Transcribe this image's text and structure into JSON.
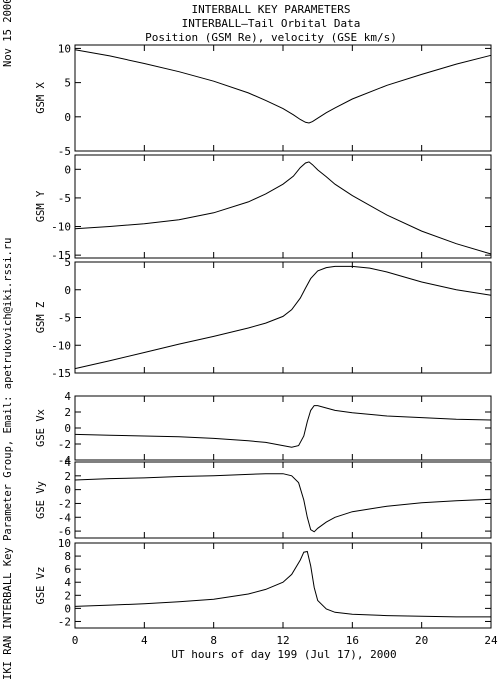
{
  "titles": {
    "line1": "INTERBALL KEY PARAMETERS",
    "line2": "INTERBALL–Tail Orbital Data",
    "line3": "Position (GSM Re), velocity (GSE km/s)"
  },
  "side_text": {
    "date": "Nov 15 2000",
    "credit": "IKI RAN INTERBALL Key Parameter Group, Email: apetrukovich@iki.rssi.ru"
  },
  "colors": {
    "line": "#000000",
    "background": "#ffffff"
  },
  "chart_data": {
    "type": "line",
    "xlabel": "UT hours of day 199 (Jul 17), 2000",
    "xlim": [
      0,
      24
    ],
    "xticks": [
      0,
      4,
      8,
      12,
      16,
      20,
      24
    ],
    "grid": false,
    "panels": [
      {
        "id": "gsm-x",
        "ylabel": "GSM X",
        "ylim": [
          -5,
          10.5
        ],
        "yticks": [
          10,
          5,
          0,
          -5
        ],
        "x": [
          0,
          2,
          4,
          6,
          8,
          10,
          11,
          12,
          12.6,
          13,
          13.3,
          13.5,
          13.7,
          14,
          14.5,
          15,
          16,
          18,
          20,
          22,
          24
        ],
        "y": [
          9.8,
          8.9,
          7.8,
          6.6,
          5.2,
          3.5,
          2.4,
          1.2,
          0.3,
          -0.4,
          -0.8,
          -0.9,
          -0.7,
          -0.2,
          0.6,
          1.3,
          2.6,
          4.6,
          6.2,
          7.7,
          9.0
        ]
      },
      {
        "id": "gsm-y",
        "ylabel": "GSM Y",
        "ylim": [
          -15.5,
          2.5
        ],
        "yticks": [
          0,
          -5,
          -10,
          -15
        ],
        "x": [
          0,
          2,
          4,
          6,
          8,
          10,
          11,
          12,
          12.6,
          13,
          13.3,
          13.5,
          13.7,
          14,
          14.5,
          15,
          16,
          18,
          20,
          22,
          24
        ],
        "y": [
          -10.4,
          -10.0,
          -9.5,
          -8.8,
          -7.6,
          -5.7,
          -4.3,
          -2.6,
          -1.2,
          0.3,
          1.1,
          1.3,
          0.8,
          -0.1,
          -1.3,
          -2.6,
          -4.6,
          -8.0,
          -10.8,
          -13.0,
          -14.8
        ]
      },
      {
        "id": "gsm-z",
        "ylabel": "GSM Z",
        "ylim": [
          -15,
          5
        ],
        "yticks": [
          5,
          0,
          -5,
          -10,
          -15
        ],
        "x": [
          0,
          2,
          4,
          6,
          8,
          10,
          11,
          12,
          12.5,
          13,
          13.3,
          13.6,
          14,
          14.5,
          15,
          16,
          17,
          18,
          19,
          20,
          22,
          24
        ],
        "y": [
          -14.2,
          -12.8,
          -11.3,
          -9.8,
          -8.4,
          -6.9,
          -6.0,
          -4.8,
          -3.6,
          -1.5,
          0.3,
          2.0,
          3.4,
          4.0,
          4.2,
          4.2,
          3.9,
          3.2,
          2.3,
          1.4,
          0.0,
          -1.0
        ]
      },
      {
        "id": "gse-vx",
        "ylabel": "GSE Vx",
        "ylim": [
          -4,
          4
        ],
        "yticks": [
          4,
          2,
          0,
          -2,
          -4
        ],
        "x": [
          0,
          2,
          4,
          6,
          8,
          10,
          11,
          12,
          12.5,
          12.9,
          13.2,
          13.4,
          13.6,
          13.8,
          14,
          14.5,
          15,
          16,
          18,
          20,
          22,
          24
        ],
        "y": [
          -0.8,
          -0.9,
          -1.0,
          -1.1,
          -1.3,
          -1.6,
          -1.8,
          -2.2,
          -2.4,
          -2.2,
          -1.0,
          0.8,
          2.2,
          2.8,
          2.8,
          2.5,
          2.2,
          1.9,
          1.5,
          1.3,
          1.1,
          1.0
        ]
      },
      {
        "id": "gse-vy",
        "ylabel": "GSE Vy",
        "ylim": [
          -7,
          4
        ],
        "yticks": [
          4,
          2,
          0,
          -2,
          -4,
          -6
        ],
        "x": [
          0,
          2,
          4,
          6,
          8,
          10,
          11,
          12,
          12.5,
          12.9,
          13.2,
          13.4,
          13.6,
          13.8,
          14,
          14.5,
          15,
          16,
          18,
          20,
          22,
          24
        ],
        "y": [
          1.4,
          1.6,
          1.7,
          1.9,
          2.0,
          2.2,
          2.3,
          2.3,
          2.0,
          1.0,
          -1.5,
          -4.0,
          -5.8,
          -6.1,
          -5.6,
          -4.7,
          -4.0,
          -3.2,
          -2.4,
          -1.9,
          -1.6,
          -1.4
        ]
      },
      {
        "id": "gse-vz",
        "ylabel": "GSE Vz",
        "ylim": [
          -3,
          10
        ],
        "yticks": [
          10,
          8,
          6,
          4,
          2,
          0,
          -2
        ],
        "x": [
          0,
          2,
          4,
          6,
          8,
          10,
          11,
          12,
          12.5,
          13,
          13.2,
          13.4,
          13.6,
          13.8,
          14,
          14.5,
          15,
          16,
          18,
          20,
          22,
          24
        ],
        "y": [
          0.3,
          0.5,
          0.7,
          1.0,
          1.4,
          2.2,
          2.9,
          4.0,
          5.2,
          7.4,
          8.6,
          8.7,
          6.5,
          3.2,
          1.2,
          -0.1,
          -0.6,
          -0.9,
          -1.1,
          -1.2,
          -1.3,
          -1.3
        ]
      }
    ]
  }
}
